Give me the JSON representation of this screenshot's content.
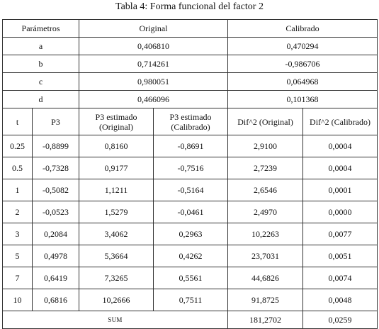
{
  "caption": "Tabla 4: Forma funcional del factor 2",
  "params_header": {
    "label": "Parámetros",
    "original": "Original",
    "calibrado": "Calibrado"
  },
  "params": [
    {
      "name": "a",
      "original": "0,406810",
      "calibrado": "0,470294"
    },
    {
      "name": "b",
      "original": "0,714261",
      "calibrado": "-0,986706"
    },
    {
      "name": "c",
      "original": "0,980051",
      "calibrado": "0,064968"
    },
    {
      "name": "d",
      "original": "0,466096",
      "calibrado": "0,101368"
    }
  ],
  "data_header": {
    "t": "t",
    "p3": "P3",
    "p3_est_orig": "P3 estimado (Original)",
    "p3_est_cal": "P3 estimado (Calibrado)",
    "dif_orig": "Dif^2 (Original)",
    "dif_cal": "Dif^2 (Calibrado)"
  },
  "rows": [
    {
      "t": "0.25",
      "p3": "-0,8899",
      "est_orig": "0,8160",
      "est_cal": "-0,8691",
      "dif_orig": "2,9100",
      "dif_cal": "0,0004"
    },
    {
      "t": "0.5",
      "p3": "-0,7328",
      "est_orig": "0,9177",
      "est_cal": "-0,7516",
      "dif_orig": "2,7239",
      "dif_cal": "0,0004"
    },
    {
      "t": "1",
      "p3": "-0,5082",
      "est_orig": "1,1211",
      "est_cal": "-0,5164",
      "dif_orig": "2,6546",
      "dif_cal": "0,0001"
    },
    {
      "t": "2",
      "p3": "-0,0523",
      "est_orig": "1,5279",
      "est_cal": "-0,0461",
      "dif_orig": "2,4970",
      "dif_cal": "0,0000"
    },
    {
      "t": "3",
      "p3": "0,2084",
      "est_orig": "3,4062",
      "est_cal": "0,2963",
      "dif_orig": "10,2263",
      "dif_cal": "0,0077"
    },
    {
      "t": "5",
      "p3": "0,4978",
      "est_orig": "5,3664",
      "est_cal": "0,4262",
      "dif_orig": "23,7031",
      "dif_cal": "0,0051"
    },
    {
      "t": "7",
      "p3": "0,6419",
      "est_orig": "7,3265",
      "est_cal": "0,5561",
      "dif_orig": "44,6826",
      "dif_cal": "0,0074"
    },
    {
      "t": "10",
      "p3": "0,6816",
      "est_orig": "10,2666",
      "est_cal": "0,7511",
      "dif_orig": "91,8725",
      "dif_cal": "0,0048"
    }
  ],
  "sum": {
    "label": "SUM",
    "dif_orig": "181,2702",
    "dif_cal": "0,0259"
  }
}
